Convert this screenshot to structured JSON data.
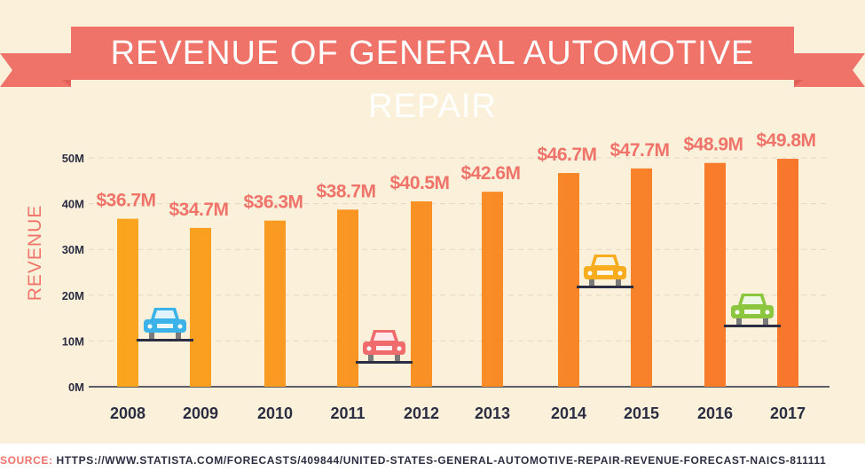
{
  "title": "REVENUE OF GENERAL AUTOMOTIVE REPAIR",
  "source": {
    "label": "SOURCE:",
    "url": "HTTPS://WWW.STATISTA.COM/FORECASTS/409844/UNITED-STATES-GENERAL-AUTOMOTIVE-REPAIR-REVENUE-FORECAST-NAICS-811111"
  },
  "colors": {
    "background": "#fbf1da",
    "banner": "#f0736a",
    "banner_fold": "#e25f57",
    "value_label": "#f0736a",
    "tick_label": "#2b2d42",
    "ylabel": "#f0736a",
    "gridline": "#e3d9c3",
    "bar_gradient": [
      "#fbad1c",
      "#f7722e"
    ],
    "car_blue": "#3bb2e8",
    "car_red": "#f06b6b",
    "car_orange": "#f8ac1e",
    "car_green": "#8cc63e",
    "road": "#2b2d42"
  },
  "icons": [
    "car-icon-blue",
    "car-icon-red",
    "car-icon-orange",
    "car-icon-green"
  ],
  "chart_data": {
    "type": "bar",
    "title": "REVENUE OF GENERAL AUTOMOTIVE REPAIR",
    "xlabel": "",
    "ylabel": "REVENUE",
    "categories": [
      "2008",
      "2009",
      "2010",
      "2011",
      "2012",
      "2013",
      "2014",
      "2015",
      "2016",
      "2017"
    ],
    "values": [
      36.7,
      34.7,
      36.3,
      38.7,
      40.5,
      42.6,
      46.7,
      47.7,
      48.9,
      49.8
    ],
    "data_labels": [
      "$36.7M",
      "$34.7M",
      "$36.3M",
      "$38.7M",
      "$40.5M",
      "$42.6M",
      "$46.7M",
      "$47.7M",
      "$48.9M",
      "$49.8M"
    ],
    "yticks": [
      0,
      10,
      20,
      30,
      40,
      50
    ],
    "ytick_labels": [
      "0M",
      "10M",
      "20M",
      "30M",
      "40M",
      "50M"
    ],
    "ylim": [
      0,
      50
    ],
    "grid": true,
    "legend": "none"
  }
}
